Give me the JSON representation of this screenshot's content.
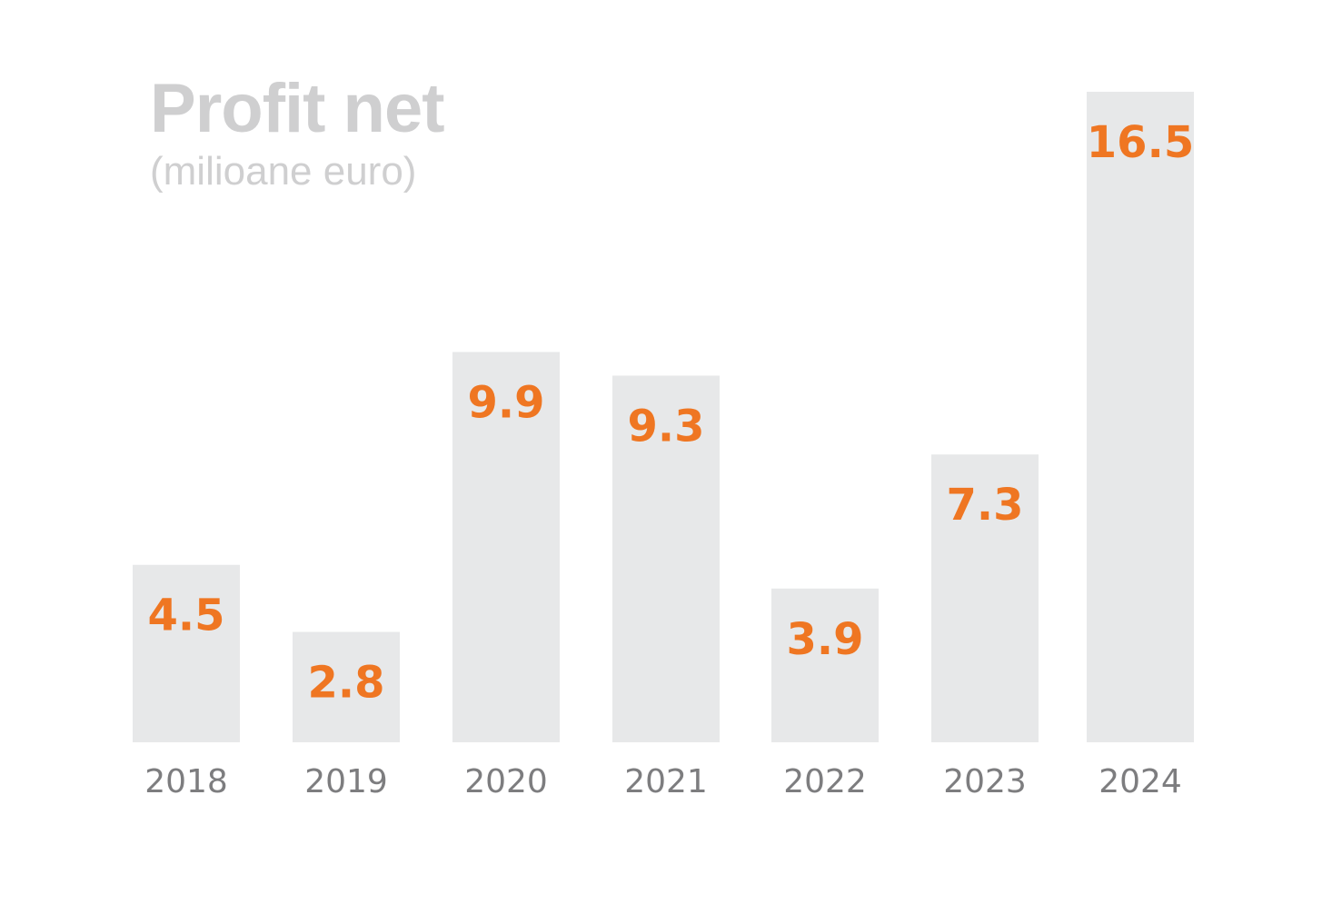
{
  "colors": {
    "bar": "#e7e8e9",
    "value_label": "#ef7622",
    "title": "#cfcfd0",
    "subtitle": "#cfcfd0",
    "tick_label": "#7d7d7f",
    "background": "#ffffff"
  },
  "chart_data": {
    "type": "bar",
    "title": "Profit net",
    "subtitle": "(milioane euro)",
    "xlabel": "",
    "ylabel": "",
    "categories": [
      "2018",
      "2019",
      "2020",
      "2021",
      "2022",
      "2023",
      "2024"
    ],
    "values": [
      4.5,
      2.8,
      9.9,
      9.3,
      3.9,
      7.3,
      16.5
    ],
    "value_labels": [
      "4.5",
      "2.8",
      "9.9",
      "9.3",
      "3.9",
      "7.3",
      "16.5"
    ],
    "ylim": [
      0,
      16.5
    ],
    "grid": false,
    "legend": "none",
    "data_labels": "inside-top"
  }
}
